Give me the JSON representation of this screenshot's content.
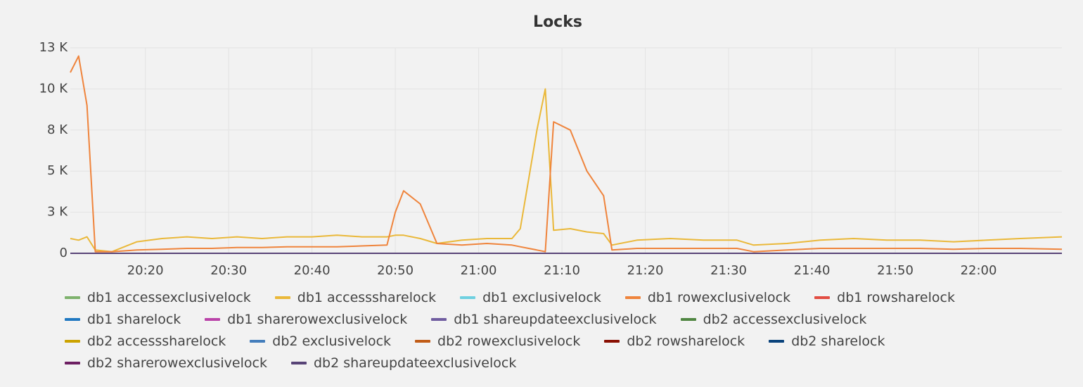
{
  "chart_data": {
    "type": "line",
    "title": "Locks",
    "x": [
      "20:11",
      "20:12",
      "20:13",
      "20:14",
      "20:16",
      "20:19",
      "20:22",
      "20:25",
      "20:28",
      "20:31",
      "20:34",
      "20:37",
      "20:40",
      "20:43",
      "20:46",
      "20:49",
      "20:50",
      "20:51",
      "20:53",
      "20:55",
      "20:58",
      "21:01",
      "21:04",
      "21:05",
      "21:06",
      "21:07",
      "21:08",
      "21:09",
      "21:11",
      "21:13",
      "21:15",
      "21:16",
      "21:19",
      "21:23",
      "21:27",
      "21:31",
      "21:33",
      "21:37",
      "21:41",
      "21:45",
      "21:49",
      "21:53",
      "21:57",
      "22:01",
      "22:05",
      "22:10"
    ],
    "xlim": [
      "20:11",
      "22:10"
    ],
    "xticks": [
      "20:20",
      "20:30",
      "20:40",
      "20:50",
      "21:00",
      "21:10",
      "21:20",
      "21:30",
      "21:40",
      "21:50",
      "22:00"
    ],
    "ylim": [
      0,
      12500
    ],
    "yticks": [
      0,
      {
        "value": 2500,
        "label": "3 K"
      },
      {
        "value": 5000,
        "label": "5 K"
      },
      {
        "value": 7500,
        "label": "8 K"
      },
      {
        "value": 10000,
        "label": "10 K"
      },
      {
        "value": 12500,
        "label": "13 K"
      }
    ],
    "grid": true,
    "legend": "bottom",
    "series": [
      {
        "name": "db1 accessexclusivelock",
        "color": "#7eb26d",
        "values": [
          0,
          0,
          0,
          0,
          0,
          0,
          0,
          0,
          0,
          0,
          0,
          0,
          0,
          0,
          0,
          0,
          0,
          0,
          0,
          0,
          0,
          0,
          0,
          0,
          0,
          0,
          0,
          0,
          0,
          0,
          0,
          0,
          0,
          0,
          0,
          0,
          0,
          0,
          0,
          0,
          0,
          0,
          0,
          0,
          0,
          0
        ]
      },
      {
        "name": "db1 accesssharelock",
        "color": "#eab839",
        "values": [
          900,
          800,
          1000,
          200,
          100,
          700,
          900,
          1000,
          900,
          1000,
          900,
          1000,
          1000,
          1100,
          1000,
          1000,
          1100,
          1100,
          900,
          600,
          800,
          900,
          900,
          1500,
          4500,
          7500,
          10000,
          1400,
          1500,
          1300,
          1200,
          500,
          800,
          900,
          800,
          800,
          500,
          600,
          800,
          900,
          800,
          800,
          700,
          800,
          900,
          1000
        ]
      },
      {
        "name": "db1 exclusivelock",
        "color": "#6ed0e0",
        "values": [
          0,
          0,
          0,
          0,
          0,
          0,
          0,
          0,
          0,
          0,
          0,
          0,
          0,
          0,
          0,
          0,
          0,
          0,
          0,
          0,
          0,
          0,
          0,
          0,
          0,
          0,
          0,
          0,
          0,
          0,
          0,
          0,
          0,
          0,
          0,
          0,
          0,
          0,
          0,
          0,
          0,
          0,
          0,
          0,
          0,
          0
        ]
      },
      {
        "name": "db1 rowexclusivelock",
        "color": "#ef843c",
        "values": [
          11000,
          12000,
          9000,
          100,
          100,
          200,
          250,
          300,
          300,
          350,
          350,
          400,
          400,
          400,
          450,
          500,
          2500,
          3800,
          3000,
          600,
          500,
          600,
          500,
          400,
          300,
          200,
          100,
          8000,
          7500,
          5000,
          3500,
          200,
          300,
          300,
          300,
          300,
          100,
          200,
          300,
          300,
          300,
          300,
          250,
          300,
          300,
          250
        ]
      },
      {
        "name": "db1 rowsharelock",
        "color": "#e24d42",
        "values": [
          0,
          0,
          0,
          0,
          0,
          0,
          0,
          0,
          0,
          0,
          0,
          0,
          0,
          0,
          0,
          0,
          0,
          0,
          0,
          0,
          0,
          0,
          0,
          0,
          0,
          0,
          0,
          0,
          0,
          0,
          0,
          0,
          0,
          0,
          0,
          0,
          0,
          0,
          0,
          0,
          0,
          0,
          0,
          0,
          0,
          0
        ]
      },
      {
        "name": "db1 sharelock",
        "color": "#1f78c1",
        "values": [
          0,
          0,
          0,
          0,
          0,
          0,
          0,
          0,
          0,
          0,
          0,
          0,
          0,
          0,
          0,
          0,
          0,
          0,
          0,
          0,
          0,
          0,
          0,
          0,
          0,
          0,
          0,
          0,
          0,
          0,
          0,
          0,
          0,
          0,
          0,
          0,
          0,
          0,
          0,
          0,
          0,
          0,
          0,
          0,
          0,
          0
        ]
      },
      {
        "name": "db1 sharerowexclusivelock",
        "color": "#ba43a9",
        "values": [
          0,
          0,
          0,
          0,
          0,
          0,
          0,
          0,
          0,
          0,
          0,
          0,
          0,
          0,
          0,
          0,
          0,
          0,
          0,
          0,
          0,
          0,
          0,
          0,
          0,
          0,
          0,
          0,
          0,
          0,
          0,
          0,
          0,
          0,
          0,
          0,
          0,
          0,
          0,
          0,
          0,
          0,
          0,
          0,
          0,
          0
        ]
      },
      {
        "name": "db1 shareupdateexclusivelock",
        "color": "#705da0",
        "values": [
          0,
          0,
          0,
          0,
          0,
          0,
          0,
          0,
          0,
          0,
          0,
          0,
          0,
          0,
          0,
          0,
          0,
          0,
          0,
          0,
          0,
          0,
          0,
          0,
          0,
          0,
          0,
          0,
          0,
          0,
          0,
          0,
          0,
          0,
          0,
          0,
          0,
          0,
          0,
          0,
          0,
          0,
          0,
          0,
          0,
          0
        ]
      },
      {
        "name": "db2 accessexclusivelock",
        "color": "#508642",
        "values": [
          0,
          0,
          0,
          0,
          0,
          0,
          0,
          0,
          0,
          0,
          0,
          0,
          0,
          0,
          0,
          0,
          0,
          0,
          0,
          0,
          0,
          0,
          0,
          0,
          0,
          0,
          0,
          0,
          0,
          0,
          0,
          0,
          0,
          0,
          0,
          0,
          0,
          0,
          0,
          0,
          0,
          0,
          0,
          0,
          0,
          0
        ]
      },
      {
        "name": "db2 accesssharelock",
        "color": "#cca300",
        "values": [
          0,
          0,
          0,
          0,
          0,
          0,
          0,
          0,
          0,
          0,
          0,
          0,
          0,
          0,
          0,
          0,
          0,
          0,
          0,
          0,
          0,
          0,
          0,
          0,
          0,
          0,
          0,
          0,
          0,
          0,
          0,
          0,
          0,
          0,
          0,
          0,
          0,
          0,
          0,
          0,
          0,
          0,
          0,
          0,
          0,
          0
        ]
      },
      {
        "name": "db2 exclusivelock",
        "color": "#447ebc",
        "values": [
          0,
          0,
          0,
          0,
          0,
          0,
          0,
          0,
          0,
          0,
          0,
          0,
          0,
          0,
          0,
          0,
          0,
          0,
          0,
          0,
          0,
          0,
          0,
          0,
          0,
          0,
          0,
          0,
          0,
          0,
          0,
          0,
          0,
          0,
          0,
          0,
          0,
          0,
          0,
          0,
          0,
          0,
          0,
          0,
          0,
          0
        ]
      },
      {
        "name": "db2 rowexclusivelock",
        "color": "#c15c17",
        "values": [
          0,
          0,
          0,
          0,
          0,
          0,
          0,
          0,
          0,
          0,
          0,
          0,
          0,
          0,
          0,
          0,
          0,
          0,
          0,
          0,
          0,
          0,
          0,
          0,
          0,
          0,
          0,
          0,
          0,
          0,
          0,
          0,
          0,
          0,
          0,
          0,
          0,
          0,
          0,
          0,
          0,
          0,
          0,
          0,
          0,
          0
        ]
      },
      {
        "name": "db2 rowsharelock",
        "color": "#890f02",
        "values": [
          0,
          0,
          0,
          0,
          0,
          0,
          0,
          0,
          0,
          0,
          0,
          0,
          0,
          0,
          0,
          0,
          0,
          0,
          0,
          0,
          0,
          0,
          0,
          0,
          0,
          0,
          0,
          0,
          0,
          0,
          0,
          0,
          0,
          0,
          0,
          0,
          0,
          0,
          0,
          0,
          0,
          0,
          0,
          0,
          0,
          0
        ]
      },
      {
        "name": "db2 sharelock",
        "color": "#0a437c",
        "values": [
          0,
          0,
          0,
          0,
          0,
          0,
          0,
          0,
          0,
          0,
          0,
          0,
          0,
          0,
          0,
          0,
          0,
          0,
          0,
          0,
          0,
          0,
          0,
          0,
          0,
          0,
          0,
          0,
          0,
          0,
          0,
          0,
          0,
          0,
          0,
          0,
          0,
          0,
          0,
          0,
          0,
          0,
          0,
          0,
          0,
          0
        ]
      },
      {
        "name": "db2 sharerowexclusivelock",
        "color": "#6d1f62",
        "values": [
          0,
          0,
          0,
          0,
          0,
          0,
          0,
          0,
          0,
          0,
          0,
          0,
          0,
          0,
          0,
          0,
          0,
          0,
          0,
          0,
          0,
          0,
          0,
          0,
          0,
          0,
          0,
          0,
          0,
          0,
          0,
          0,
          0,
          0,
          0,
          0,
          0,
          0,
          0,
          0,
          0,
          0,
          0,
          0,
          0,
          0
        ]
      },
      {
        "name": "db2 shareupdateexclusivelock",
        "color": "#584477",
        "values": [
          0,
          0,
          0,
          0,
          0,
          0,
          0,
          0,
          0,
          0,
          0,
          0,
          0,
          0,
          0,
          0,
          0,
          0,
          0,
          0,
          0,
          0,
          0,
          0,
          0,
          0,
          0,
          0,
          0,
          0,
          0,
          0,
          0,
          0,
          0,
          0,
          0,
          0,
          0,
          0,
          0,
          0,
          0,
          0,
          0,
          0
        ]
      }
    ]
  }
}
